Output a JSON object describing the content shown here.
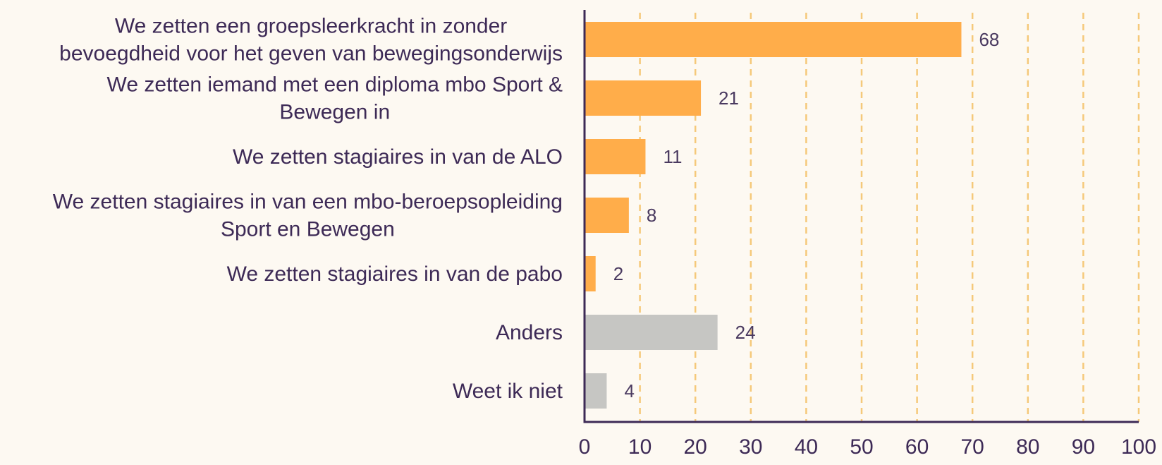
{
  "chart_data": {
    "type": "bar",
    "orientation": "horizontal",
    "categories": [
      [
        "We zetten een groepsleerkracht in zonder",
        "bevoegdheid voor het geven van bewegingsonderwijs"
      ],
      [
        "We zetten iemand met een diploma mbo Sport &",
        "Bewegen in"
      ],
      [
        "We zetten stagiaires in van de ALO"
      ],
      [
        "We zetten stagiaires in van een mbo-beroepsopleiding",
        "Sport en Bewegen"
      ],
      [
        "We zetten stagiaires in van de pabo"
      ],
      [
        "Anders"
      ],
      [
        "Weet ik niet"
      ]
    ],
    "values": [
      68,
      21,
      11,
      8,
      2,
      24,
      4
    ],
    "bar_colors": [
      "#ffad4a",
      "#ffad4a",
      "#ffad4a",
      "#ffad4a",
      "#ffad4a",
      "#c6c6c3",
      "#c6c6c3"
    ],
    "xlim": [
      0,
      100
    ],
    "x_ticks": [
      "0",
      "10",
      "20",
      "30",
      "40",
      "50",
      "60",
      "70",
      "80",
      "90",
      "100"
    ],
    "grid": "vertical dashed",
    "title": "",
    "xlabel": "",
    "ylabel": "",
    "colors": {
      "background": "#fdf9f2",
      "text": "#3d2a56",
      "gridline": "#f5c97a",
      "axis": "#3d2a56"
    }
  }
}
